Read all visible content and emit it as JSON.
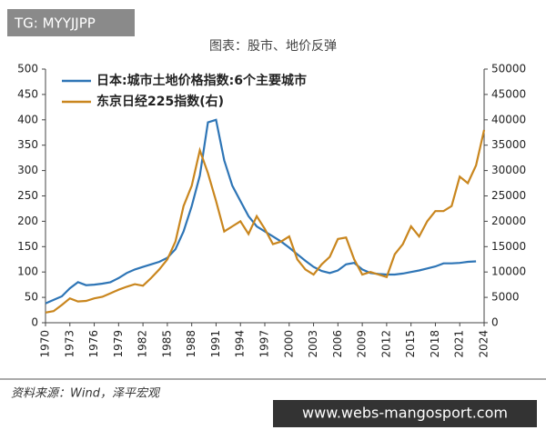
{
  "overlay": {
    "tag": "TG: MYYJJPP",
    "site": "www.webs-mangosport.com"
  },
  "chart_data": {
    "type": "line",
    "title": "图表：股市、地价反弹",
    "source": "资料来源：Wind，泽平宏观",
    "x": [
      1970,
      1971,
      1972,
      1973,
      1974,
      1975,
      1976,
      1977,
      1978,
      1979,
      1980,
      1981,
      1982,
      1983,
      1984,
      1985,
      1986,
      1987,
      1988,
      1989,
      1990,
      1991,
      1992,
      1993,
      1994,
      1995,
      1996,
      1997,
      1998,
      1999,
      2000,
      2001,
      2002,
      2003,
      2004,
      2005,
      2006,
      2007,
      2008,
      2009,
      2010,
      2011,
      2012,
      2013,
      2014,
      2015,
      2016,
      2017,
      2018,
      2019,
      2020,
      2021,
      2022,
      2023,
      2024
    ],
    "xlim": [
      1970,
      2024
    ],
    "xticks": [
      1970,
      1973,
      1976,
      1979,
      1982,
      1985,
      1988,
      1991,
      1994,
      1997,
      2000,
      2003,
      2006,
      2009,
      2012,
      2015,
      2018,
      2021,
      2024
    ],
    "ylim": [
      0,
      500
    ],
    "yticks": [
      0,
      50,
      100,
      150,
      200,
      250,
      300,
      350,
      400,
      450,
      500
    ],
    "y2lim": [
      0,
      50000
    ],
    "y2ticks": [
      0,
      5000,
      10000,
      15000,
      20000,
      25000,
      30000,
      35000,
      40000,
      45000,
      50000
    ],
    "grid": false,
    "legend": "top-left",
    "series": [
      {
        "name": "日本:城市土地价格指数:6个主要城市",
        "color": "#2e75b6",
        "values": [
          38,
          45,
          52,
          68,
          80,
          74,
          75,
          77,
          80,
          88,
          98,
          105,
          110,
          115,
          120,
          128,
          145,
          180,
          230,
          290,
          395,
          400,
          320,
          270,
          240,
          210,
          190,
          180,
          170,
          160,
          148,
          135,
          122,
          110,
          102,
          98,
          103,
          115,
          118,
          105,
          98,
          96,
          95,
          95,
          97,
          100,
          103,
          107,
          111,
          117,
          117,
          118,
          120,
          121,
          null
        ]
      },
      {
        "name": "东京日经225指数(右)",
        "color": "#c9861e",
        "axis": "y2",
        "values": [
          2000,
          2300,
          3500,
          4800,
          4200,
          4300,
          4800,
          5100,
          5800,
          6500,
          7100,
          7600,
          7300,
          8800,
          10500,
          12500,
          16000,
          23000,
          27000,
          34000,
          29500,
          24000,
          18000,
          19000,
          20000,
          17500,
          21000,
          18500,
          15500,
          16000,
          17000,
          12500,
          10500,
          9500,
          11500,
          13000,
          16500,
          16800,
          12500,
          9500,
          10000,
          9500,
          9000,
          13500,
          15500,
          19000,
          17000,
          20000,
          22000,
          22000,
          23000,
          28800,
          27500,
          31000,
          38000
        ]
      }
    ]
  }
}
